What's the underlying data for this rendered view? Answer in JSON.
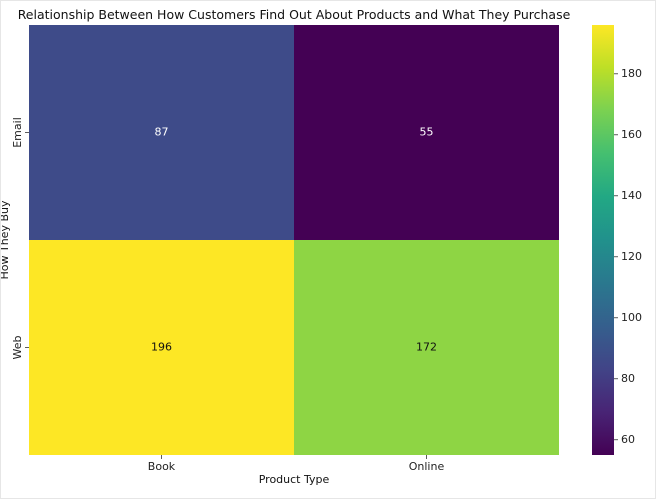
{
  "chart_data": {
    "type": "heatmap",
    "title": "Relationship Between How Customers Find Out About Products and What They Purchase",
    "xlabel": "Product Type",
    "ylabel": "How They Buy",
    "x_categories": [
      "Book",
      "Online"
    ],
    "y_categories": [
      "Email",
      "Web"
    ],
    "values": [
      [
        87,
        55
      ],
      [
        196,
        172
      ]
    ],
    "colormap": "viridis",
    "colorbar": {
      "range": [
        55,
        196
      ],
      "ticks": [
        60,
        80,
        100,
        120,
        140,
        160,
        180
      ]
    },
    "annotations": true
  }
}
